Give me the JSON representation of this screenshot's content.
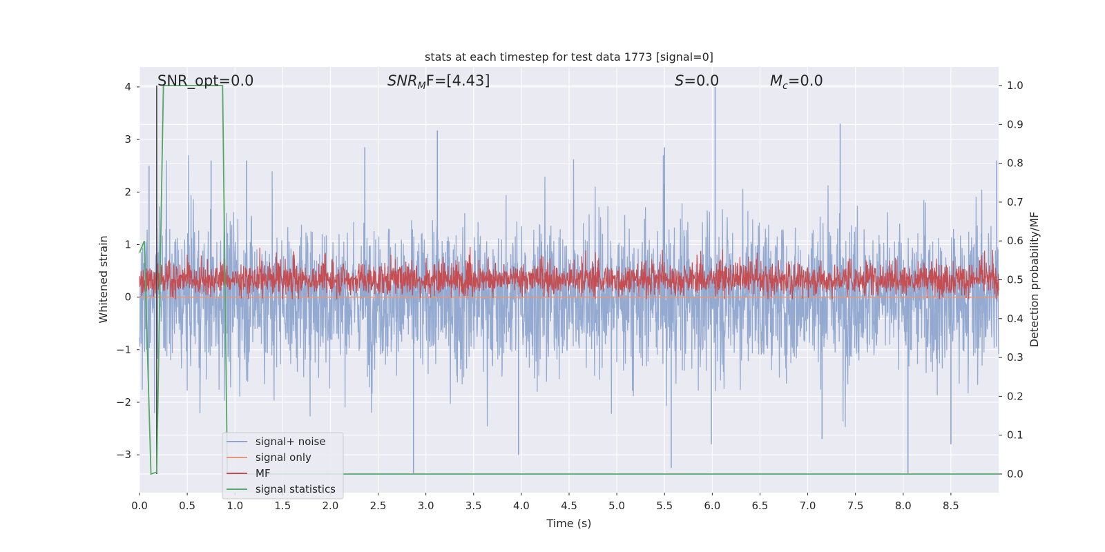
{
  "chart_data": {
    "type": "line",
    "title": "stats at each timestep for test data 1773 [signal=0]",
    "xlabel": "Time (s)",
    "ylabel": "Whitened strain",
    "ylabel_right": "Detection probability/MF",
    "xlim": [
      0.0,
      9.0
    ],
    "ylim": [
      -3.72,
      4.38
    ],
    "ylim_right": [
      -0.048,
      1.048
    ],
    "x_ticks": [
      "0.0",
      "0.5",
      "1.0",
      "1.5",
      "2.0",
      "2.5",
      "3.0",
      "3.5",
      "4.0",
      "4.5",
      "5.0",
      "5.5",
      "6.0",
      "6.5",
      "7.0",
      "7.5",
      "8.0",
      "8.5"
    ],
    "y_ticks": [
      "−3",
      "−2",
      "−1",
      "0",
      "1",
      "2",
      "3",
      "4"
    ],
    "y_ticks_right": [
      "0.0",
      "0.1",
      "0.2",
      "0.3",
      "0.4",
      "0.5",
      "0.6",
      "0.7",
      "0.8",
      "0.9",
      "1.0"
    ],
    "grid": true,
    "legend_position": "lower-left",
    "annotations": {
      "snr_opt": "SNR_opt=0.0",
      "snr_mf_base": "SNR",
      "snr_mf_sub": "M",
      "snr_mf_rest": "F=[4.43]",
      "s_var": "S",
      "s_rest": "=0.0",
      "mc_base": "M",
      "mc_sub": "c",
      "mc_rest": "=0.0"
    },
    "marker_line_x": 0.18,
    "series": [
      {
        "name": "signal+ noise",
        "color": "#8fa6cf",
        "axis": "left",
        "description": "whitened noise, approx mean 0, std 0.9, peaks up to 4.0 at t~6.03 and down to -3.35 at t~2.87 and t~8.05",
        "peaks": [
          [
            0.1,
            2.5
          ],
          [
            0.75,
            2.6
          ],
          [
            1.12,
            2.6
          ],
          [
            2.36,
            2.85
          ],
          [
            3.12,
            3.17
          ],
          [
            5.5,
            2.85
          ],
          [
            6.03,
            4.0
          ],
          [
            7.34,
            3.3
          ],
          [
            8.98,
            2.6
          ]
        ],
        "troughs": [
          [
            2.87,
            -3.35
          ],
          [
            3.97,
            -3.0
          ],
          [
            5.57,
            -3.25
          ],
          [
            5.99,
            -2.8
          ],
          [
            7.15,
            -2.7
          ],
          [
            8.05,
            -3.35
          ],
          [
            8.5,
            -2.8
          ]
        ]
      },
      {
        "name": "signal only",
        "color": "#e8967a",
        "axis": "left",
        "x": [
          0.0,
          9.0
        ],
        "y": [
          0.0,
          0.0
        ]
      },
      {
        "name": "MF",
        "color": "#c44e52",
        "axis": "right",
        "description": "matched-filter output fluctuating around 0.5, range approx 0.45 to 0.62"
      },
      {
        "name": "signal statistics",
        "color": "#55a868",
        "axis": "right",
        "x": [
          0.0,
          0.05,
          0.12,
          0.18,
          0.25,
          0.87,
          0.92,
          0.98,
          2.0,
          9.0
        ],
        "y": [
          0.57,
          0.6,
          0.0,
          0.005,
          1.0,
          1.0,
          0.0,
          0.0,
          0.0,
          0.0
        ]
      }
    ]
  }
}
